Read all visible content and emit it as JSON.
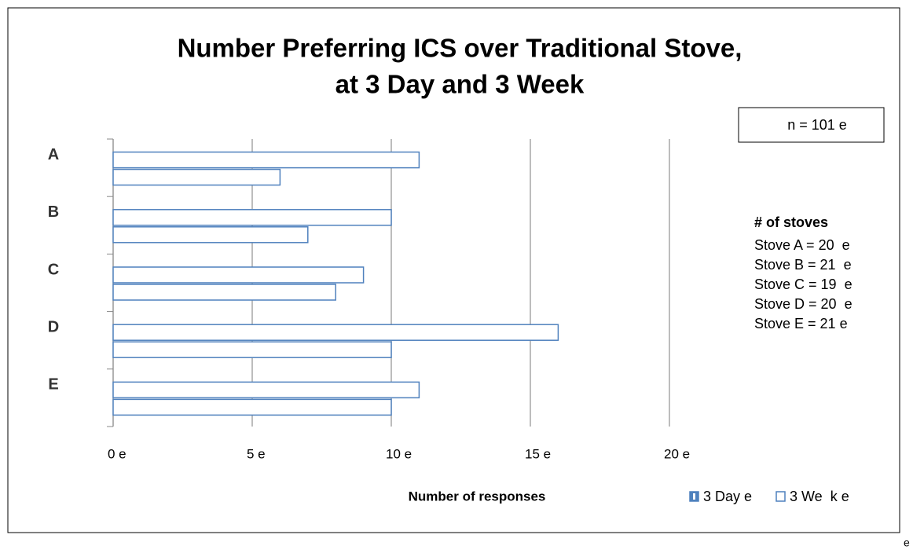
{
  "chart_data": {
    "type": "bar",
    "orientation": "horizontal",
    "title": [
      "Number Preferring ICS over Traditional Stove,",
      "at 3 Day and 3 Week"
    ],
    "xlabel": "Number of responses",
    "categories": [
      "A",
      "B",
      "C",
      "D",
      "E"
    ],
    "series": [
      {
        "name": "3 Day e",
        "color": "#4f81bd",
        "values": [
          11,
          10,
          9,
          16,
          11
        ]
      },
      {
        "name": "3 We  k e",
        "color": "#4f81bd",
        "values": [
          6,
          7,
          8,
          10,
          10
        ]
      }
    ],
    "xlim": [
      0,
      20
    ],
    "xticks": [
      {
        "value": 0,
        "label": "0 e"
      },
      {
        "value": 5,
        "label": "5 e"
      },
      {
        "value": 10,
        "label": "10 e"
      },
      {
        "value": 15,
        "label": "15 e"
      },
      {
        "value": 20,
        "label": "20 e"
      }
    ],
    "grid": true,
    "legend": "bottom-right",
    "annotations": {
      "n": "n = 101 e",
      "stoves_header": "# of stoves",
      "stoves": [
        "Stove A = 20  e",
        "Stove B = 21  e",
        "Stove C = 19  e",
        "Stove D = 20  e",
        "Stove E = 21 e"
      ],
      "corner": "e"
    }
  }
}
